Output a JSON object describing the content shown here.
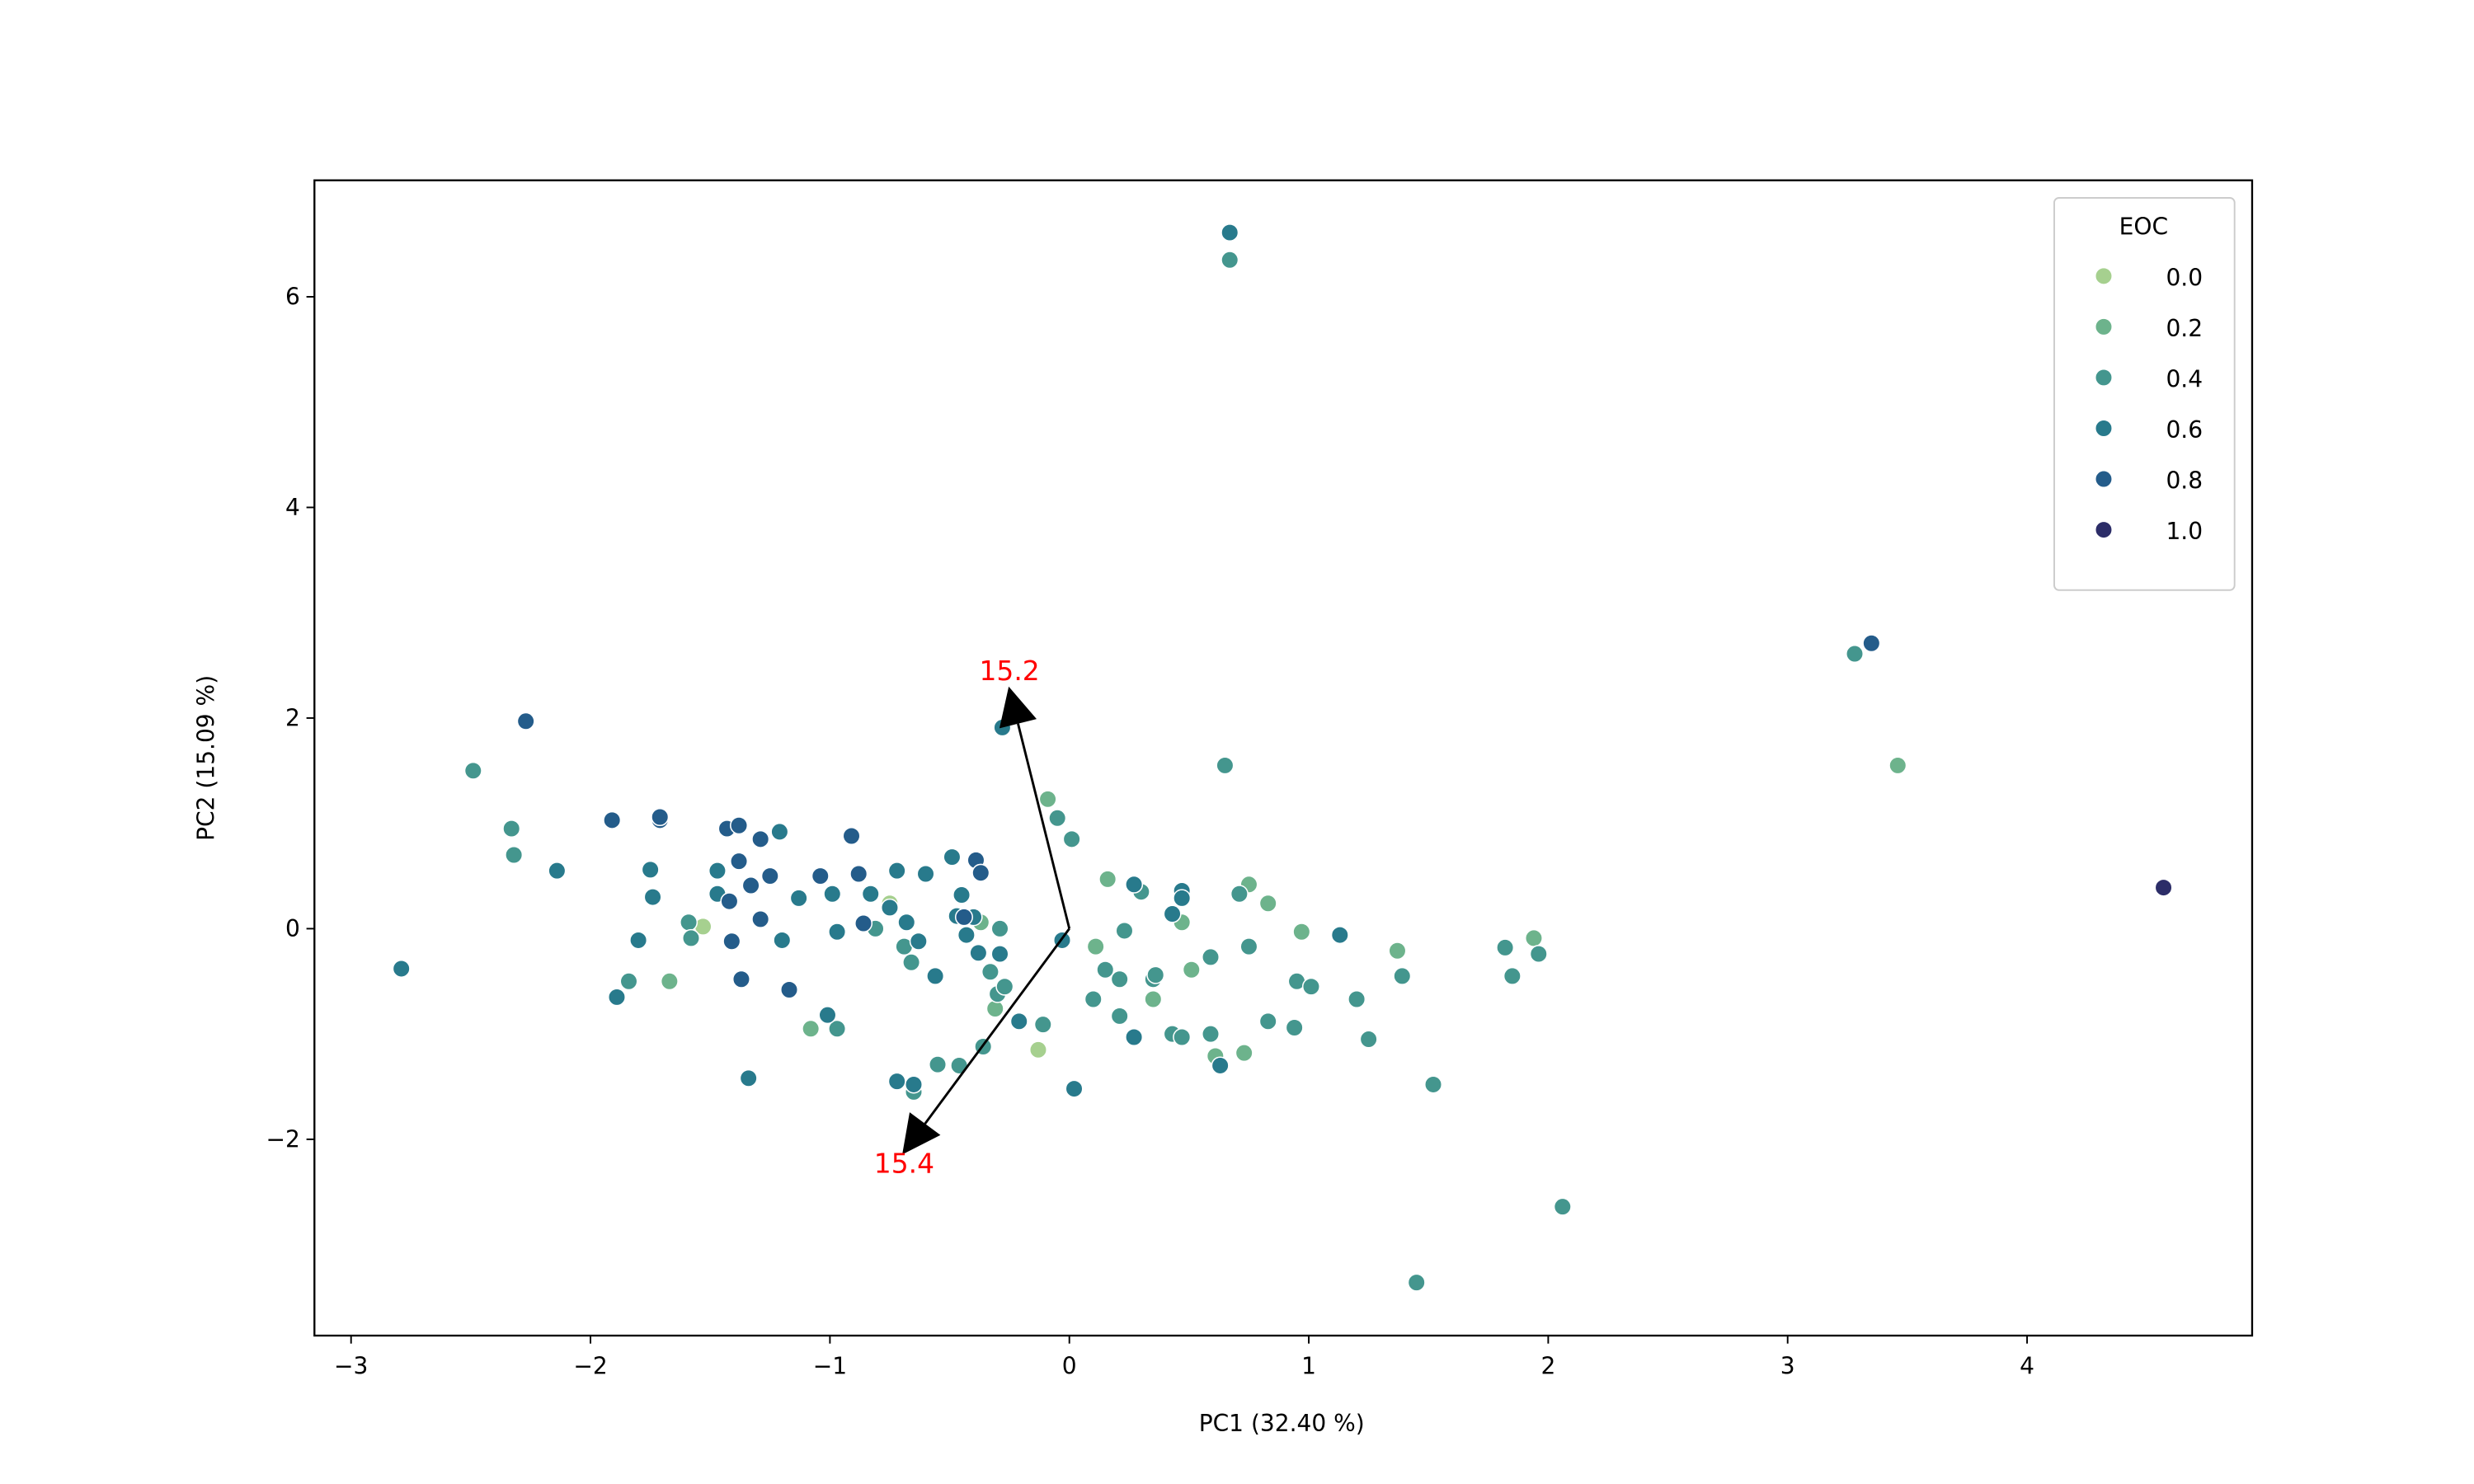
{
  "chart_data": {
    "type": "scatter",
    "xlabel": "PC1 (32.40 %)",
    "ylabel": "PC2 (15.09 %)",
    "xlim": [
      -3.153,
      4.94
    ],
    "ylim": [
      -3.864,
      7.106
    ],
    "xticks": [
      {
        "value": -3,
        "label": "−3"
      },
      {
        "value": -2,
        "label": "−2"
      },
      {
        "value": -1,
        "label": "−1"
      },
      0,
      1,
      2,
      3,
      4
    ],
    "yticks": [
      {
        "value": -2,
        "label": "−2"
      },
      0,
      2,
      4,
      6
    ],
    "legend_title": "EOC",
    "legend_position": "upper right",
    "series": [
      {
        "name": "0.0",
        "color": "#a6d08f",
        "x": [
          -1.53,
          -0.75,
          -0.13
        ],
        "y": [
          0.02,
          0.24,
          -1.15
        ]
      },
      {
        "name": "0.2",
        "color": "#6db38c",
        "x": [
          3.46,
          -1.67,
          -1.08,
          -0.37,
          -0.31,
          -0.09,
          0.11,
          0.16,
          0.35,
          0.47,
          0.51,
          0.61,
          0.73,
          0.75,
          0.83,
          0.97,
          1.37,
          1.94
        ],
        "y": [
          1.55,
          -0.5,
          -0.95,
          0.06,
          -0.76,
          1.23,
          -0.17,
          0.47,
          -0.67,
          0.06,
          -0.39,
          -1.21,
          -1.18,
          0.42,
          0.24,
          -0.03,
          -0.21,
          -0.09
        ]
      },
      {
        "name": "0.4",
        "color": "#44968e",
        "x": [
          0.67,
          3.28,
          -2.49,
          -2.33,
          -2.32,
          -1.84,
          -1.59,
          -1.58,
          -0.97,
          -0.81,
          -0.69,
          -0.66,
          -0.55,
          -0.46,
          -0.36,
          -0.65,
          -0.33,
          -0.3,
          -0.29,
          -0.27,
          -0.11,
          -0.05,
          0.01,
          0.1,
          0.15,
          0.21,
          0.21,
          0.3,
          0.23,
          0.35,
          0.36,
          0.43,
          0.47,
          0.59,
          0.59,
          0.65,
          0.71,
          0.75,
          0.83,
          0.94,
          0.95,
          1.01,
          1.2,
          1.25,
          1.39,
          1.52,
          1.45,
          1.82,
          1.85,
          1.96,
          2.06
        ],
        "y": [
          6.35,
          2.61,
          1.5,
          0.95,
          0.7,
          -0.5,
          0.06,
          -0.09,
          -0.95,
          0.0,
          -0.17,
          -0.32,
          -1.29,
          -1.3,
          -1.12,
          -1.55,
          -0.41,
          -0.62,
          0.0,
          -0.55,
          -0.91,
          1.05,
          0.85,
          -0.67,
          -0.39,
          -0.48,
          -0.83,
          0.35,
          -0.02,
          -0.48,
          -0.44,
          -1.0,
          -1.03,
          -1.0,
          -0.27,
          1.55,
          0.33,
          -0.17,
          -0.88,
          -0.94,
          -0.5,
          -0.55,
          -0.67,
          -1.05,
          -0.45,
          -1.48,
          -3.36,
          -0.18,
          -0.45,
          -0.24,
          -2.64
        ]
      },
      {
        "name": "0.6",
        "color": "#287a8c",
        "x": [
          0.67,
          -2.79,
          -2.14,
          -1.75,
          -1.74,
          -1.8,
          -1.89,
          -1.47,
          -1.47,
          -1.21,
          -1.2,
          -1.13,
          -1.34,
          -1.01,
          -0.99,
          -0.97,
          -0.83,
          -0.75,
          -0.72,
          -0.68,
          -0.63,
          -0.6,
          -0.56,
          -0.72,
          -0.65,
          -0.49,
          -0.45,
          -0.47,
          -0.43,
          -0.38,
          -0.4,
          -0.29,
          -0.21,
          -0.28,
          -0.03,
          0.02,
          0.27,
          0.27,
          0.43,
          0.47,
          0.47,
          0.63,
          1.13
        ],
        "y": [
          6.61,
          -0.38,
          0.55,
          0.56,
          0.3,
          -0.11,
          -0.65,
          0.55,
          0.33,
          0.92,
          -0.11,
          0.29,
          -1.42,
          -0.82,
          0.33,
          -0.03,
          0.33,
          0.2,
          0.55,
          0.06,
          -0.12,
          0.52,
          -0.45,
          -1.45,
          -1.48,
          0.68,
          0.32,
          0.12,
          -0.06,
          -0.23,
          0.11,
          -0.24,
          -0.88,
          1.91,
          -0.11,
          -1.52,
          0.42,
          -1.03,
          0.14,
          0.36,
          0.29,
          -1.3,
          -0.06
        ]
      },
      {
        "name": "0.8",
        "color": "#245c8a",
        "x": [
          3.35,
          -2.27,
          -1.91,
          -1.71,
          -1.71,
          -1.43,
          -1.38,
          -1.42,
          -1.41,
          -1.38,
          -1.33,
          -1.29,
          -1.25,
          -1.29,
          -1.37,
          -1.17,
          -1.04,
          -0.91,
          -0.88,
          -0.86,
          -0.44,
          -0.39,
          -0.37
        ],
        "y": [
          2.71,
          1.97,
          1.03,
          1.03,
          1.06,
          0.95,
          0.98,
          0.26,
          -0.12,
          0.64,
          0.41,
          0.85,
          0.5,
          0.09,
          -0.48,
          -0.58,
          0.5,
          0.88,
          0.52,
          0.05,
          0.11,
          0.65,
          0.53
        ]
      },
      {
        "name": "1.0",
        "color": "#2c2d68",
        "x": [
          4.57
        ],
        "y": [
          0.39
        ]
      }
    ],
    "arrows": [
      {
        "x": -0.25,
        "y": 2.27,
        "label": "15.2",
        "color": "#ff0000"
      },
      {
        "x": -0.69,
        "y": -2.12,
        "label": "15.4",
        "color": "#ff0000"
      }
    ]
  }
}
